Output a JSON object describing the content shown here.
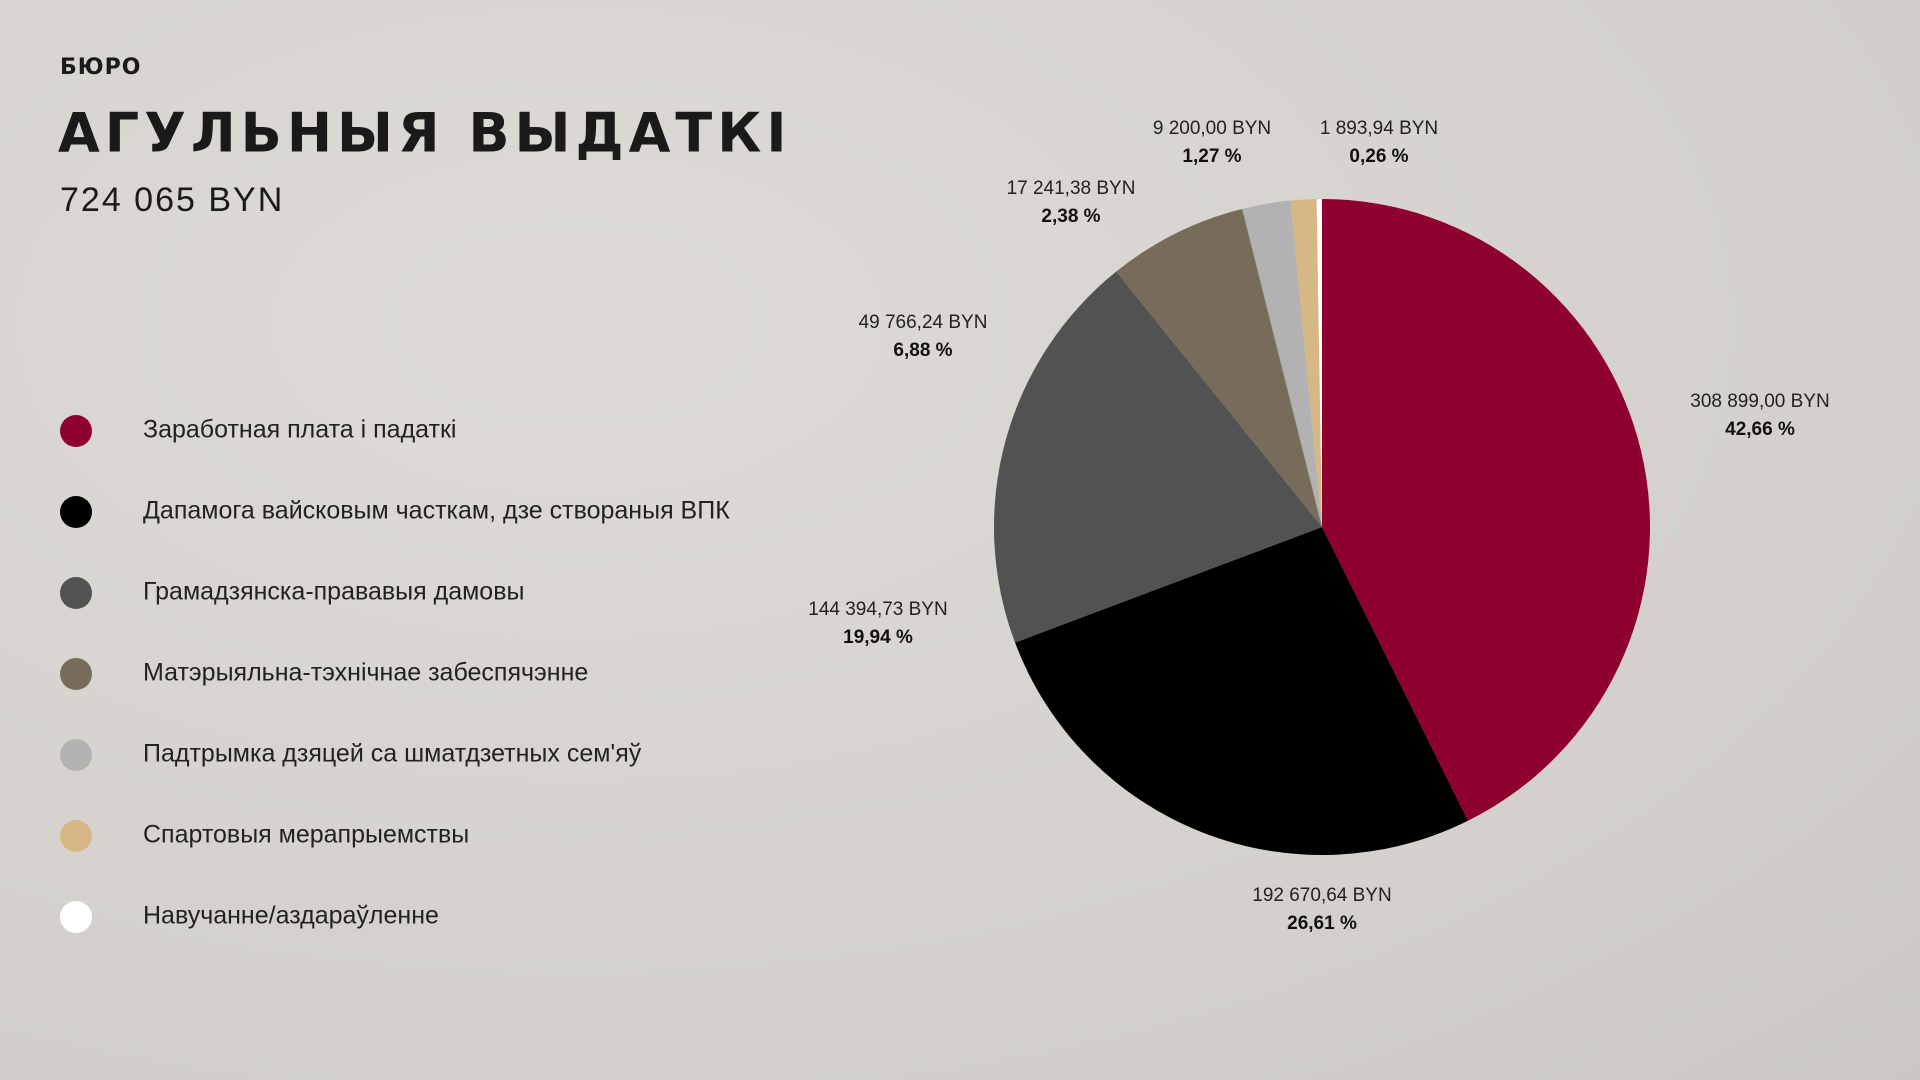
{
  "brand": "БЮРО",
  "chart_data": {
    "type": "pie",
    "title": "АГУЛЬНЫЯ ВЫДАТКІ",
    "subtitle": "724 065 BYN",
    "categories": [
      "Заработная плата і падаткі",
      "Дапамога вайсковым часткам, дзе створаныя ВПК",
      "Грамадзянска-прававыя дамовы",
      "Матэрыяльна-тэхнічнае забеспячэнне",
      "Падтрымка дзяцей са шматдзетных сем'яў",
      "Спартовыя мерапрыемствы",
      "Навучанне/аздараўленне"
    ],
    "values": [
      42.66,
      26.61,
      19.94,
      6.88,
      2.38,
      1.27,
      0.26
    ],
    "value_labels": [
      "42,66 %",
      "26,61 %",
      "19,94 %",
      "6,88 %",
      "2,38 %",
      "1,27 %",
      "0,26 %"
    ],
    "amounts": [
      308899.0,
      192670.64,
      144394.73,
      49766.24,
      17241.38,
      9200.0,
      1893.94
    ],
    "amount_labels": [
      "308 899,00 BYN",
      "192 670,64 BYN",
      "144 394,73 BYN",
      "49 766,24 BYN",
      "17 241,38 BYN",
      "9 200,00 BYN",
      "1 893,94 BYN"
    ],
    "colors": [
      "#8e0030",
      "#000000",
      "#525252",
      "#776b5a",
      "#b2b2b2",
      "#d6b886",
      "#ffffff"
    ]
  }
}
